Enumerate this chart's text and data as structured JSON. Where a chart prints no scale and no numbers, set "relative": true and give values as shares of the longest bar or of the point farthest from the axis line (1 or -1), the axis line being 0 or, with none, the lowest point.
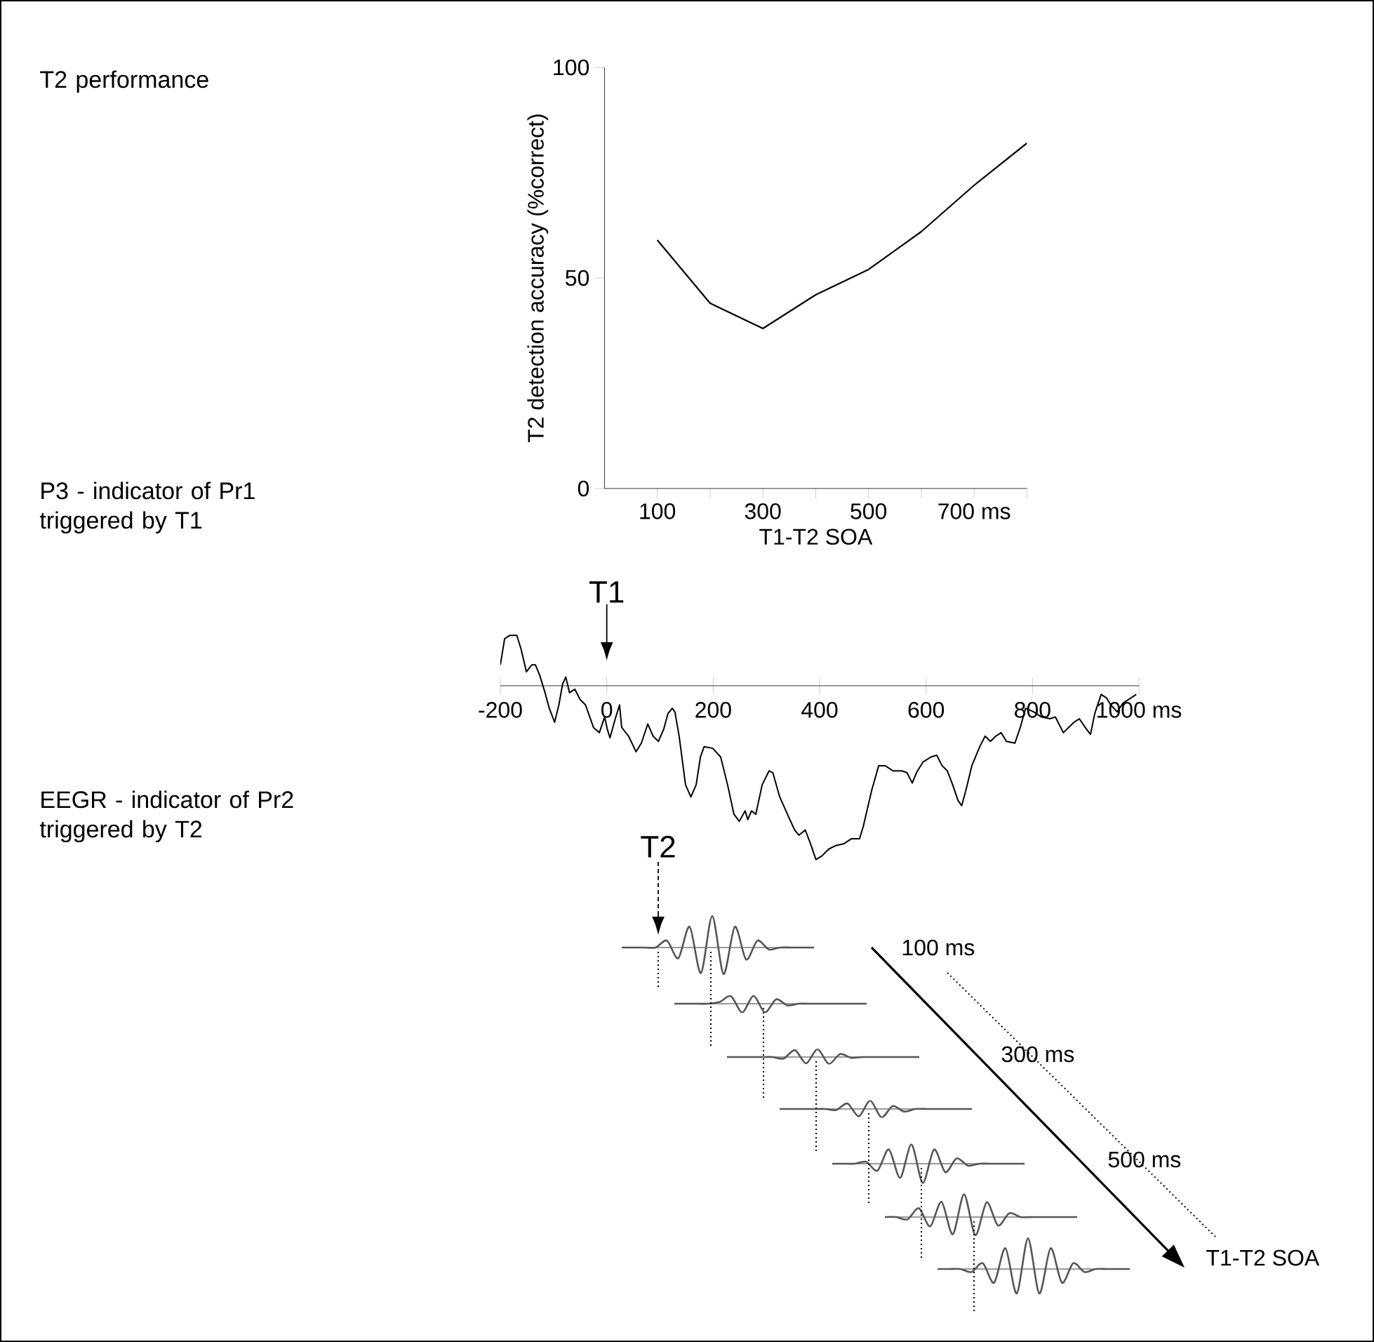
{
  "chart_data": [
    {
      "type": "line",
      "annotations": [
        "T2 performance"
      ],
      "xlabel": "T1-T2 SOA",
      "ylabel": "T2 detection accuracy (%correct)",
      "x": [
        100,
        200,
        300,
        400,
        500,
        600,
        700,
        800
      ],
      "values": [
        59,
        44,
        38,
        46,
        52,
        61,
        72,
        82
      ],
      "color": "#000000",
      "xlim": [
        0,
        800
      ],
      "xticks": [
        100,
        {
          "value": 200,
          "label": null
        },
        300,
        {
          "value": 400,
          "label": null
        },
        500,
        {
          "value": 600,
          "label": null
        },
        {
          "value": 700,
          "label": "700 ms"
        },
        {
          "value": 800,
          "label": null
        }
      ],
      "ylim": [
        0,
        100
      ],
      "yticks": [
        0,
        50,
        100
      ]
    },
    {
      "type": "line",
      "relative": true,
      "color": "#000000",
      "x": [
        -200,
        -192,
        -182,
        -169,
        -161,
        -151,
        -141,
        -134,
        -126,
        -116,
        -108,
        -98,
        -90,
        -83,
        -77,
        -70,
        -60,
        -50,
        -40,
        -25,
        -14,
        -4,
        1,
        6,
        16,
        24,
        28,
        41,
        55,
        65,
        77,
        87,
        97,
        107,
        115,
        123,
        128,
        136,
        148,
        158,
        168,
        176,
        183,
        199,
        214,
        227,
        239,
        249,
        260,
        265,
        272,
        280,
        292,
        305,
        312,
        325,
        341,
        353,
        361,
        373,
        383,
        393,
        404,
        417,
        430,
        445,
        460,
        475,
        482,
        498,
        511,
        523,
        538,
        554,
        564,
        574,
        582,
        594,
        609,
        620,
        630,
        640,
        650,
        660,
        667,
        675,
        686,
        701,
        711,
        721,
        731,
        741,
        751,
        767,
        777,
        787,
        802,
        817,
        833,
        843,
        858,
        878,
        888,
        899,
        909,
        917,
        929,
        939,
        947,
        959,
        970,
        985,
        995
      ],
      "values": [
        0.12,
        0.27,
        0.29,
        0.29,
        0.21,
        0.08,
        0.12,
        0.12,
        0.06,
        -0.04,
        -0.13,
        -0.21,
        -0.11,
        0.01,
        0.05,
        -0.04,
        -0.02,
        -0.08,
        -0.11,
        -0.24,
        -0.27,
        -0.18,
        -0.25,
        -0.3,
        -0.19,
        -0.11,
        -0.24,
        -0.29,
        -0.38,
        -0.33,
        -0.22,
        -0.29,
        -0.32,
        -0.25,
        -0.16,
        -0.13,
        -0.15,
        -0.29,
        -0.57,
        -0.64,
        -0.57,
        -0.41,
        -0.35,
        -0.36,
        -0.41,
        -0.57,
        -0.74,
        -0.78,
        -0.72,
        -0.77,
        -0.72,
        -0.74,
        -0.57,
        -0.49,
        -0.5,
        -0.64,
        -0.75,
        -0.83,
        -0.86,
        -0.83,
        -0.91,
        -1,
        -0.98,
        -0.94,
        -0.92,
        -0.91,
        -0.88,
        -0.88,
        -0.81,
        -0.6,
        -0.46,
        -0.46,
        -0.49,
        -0.49,
        -0.5,
        -0.56,
        -0.5,
        -0.44,
        -0.41,
        -0.4,
        -0.46,
        -0.49,
        -0.57,
        -0.66,
        -0.69,
        -0.6,
        -0.46,
        -0.35,
        -0.29,
        -0.32,
        -0.29,
        -0.27,
        -0.32,
        -0.33,
        -0.24,
        -0.13,
        -0.15,
        -0.18,
        -0.19,
        -0.18,
        -0.27,
        -0.21,
        -0.19,
        -0.24,
        -0.28,
        -0.16,
        -0.05,
        -0.07,
        -0.11,
        -0.15,
        -0.1,
        -0.07,
        -0.05
      ],
      "xlim": [
        -200,
        1000
      ],
      "xticks": [
        -200,
        0,
        200,
        400,
        600,
        800,
        {
          "value": 1000,
          "label": "1000 ms"
        }
      ],
      "annotations": [
        "P3 - indicator of Pr1 triggered by T1",
        {
          "text": "T1",
          "x": 0
        }
      ]
    },
    {
      "type": "line",
      "relative": true,
      "color": "#555555",
      "annotations": [
        "EEGR - indicator of Pr2 triggered by T2",
        "T2"
      ],
      "categories": [
        null,
        null,
        null,
        null,
        null,
        null,
        null,
        null,
        null,
        null,
        null,
        null,
        null,
        null,
        null,
        null,
        null,
        null
      ],
      "values": [
        0,
        0,
        0,
        0,
        0.22,
        -0.34,
        0.66,
        -0.81,
        1,
        -0.84,
        0.66,
        -0.38,
        0.22,
        -0.06,
        0,
        0,
        0,
        0
      ]
    },
    {
      "type": "line",
      "relative": true,
      "color": "#555555",
      "categories": [
        null,
        null,
        null,
        null,
        null,
        null,
        null,
        null,
        null,
        null,
        null,
        null,
        null,
        null,
        null,
        null,
        null,
        null
      ],
      "values": [
        0,
        0,
        0,
        0,
        0.2,
        0.85,
        -1,
        0.9,
        -1,
        0.5,
        -0.2,
        0,
        0,
        0,
        0,
        0,
        0,
        0
      ]
    },
    {
      "type": "line",
      "relative": true,
      "color": "#555555",
      "categories": [
        null,
        null,
        null,
        null,
        null,
        null,
        null,
        null,
        null,
        null,
        null,
        null,
        null,
        null,
        null,
        null,
        null,
        null
      ],
      "values": [
        0,
        0,
        0,
        0,
        0,
        -0.2,
        0.88,
        -0.81,
        1,
        -0.88,
        0.38,
        -0.1,
        0,
        0,
        0,
        0,
        0,
        0
      ]
    },
    {
      "type": "line",
      "relative": true,
      "color": "#555555",
      "categories": [
        null,
        null,
        null,
        null,
        null,
        null,
        null,
        null,
        null,
        null,
        null,
        null,
        null,
        null,
        null,
        null,
        null,
        null
      ],
      "values": [
        0,
        0,
        0,
        0,
        0,
        -0.12,
        0.65,
        -0.88,
        1,
        -1,
        0.35,
        -0.3,
        0,
        0,
        0,
        0,
        0,
        0
      ]
    },
    {
      "type": "line",
      "relative": true,
      "color": "#555555",
      "categories": [
        null,
        null,
        null,
        null,
        null,
        null,
        null,
        null,
        null,
        null,
        null,
        null,
        null,
        null,
        null,
        null,
        null,
        null
      ],
      "values": [
        0,
        0,
        0,
        0.1,
        -0.36,
        0.74,
        -0.74,
        1,
        -1,
        0.74,
        -0.44,
        0.28,
        -0.1,
        0,
        0,
        0,
        0,
        0
      ]
    },
    {
      "type": "line",
      "relative": true,
      "color": "#555555",
      "categories": [
        null,
        null,
        null,
        null,
        null,
        null,
        null,
        null,
        null,
        null,
        null,
        null,
        null,
        null,
        null,
        null,
        null,
        null
      ],
      "values": [
        0,
        0,
        -0.1,
        0.39,
        -0.41,
        0.67,
        -0.76,
        1,
        -0.8,
        0.65,
        -0.37,
        0.17,
        0,
        0,
        0,
        0,
        0,
        0
      ]
    },
    {
      "type": "line",
      "relative": true,
      "color": "#555555",
      "categories": [
        null,
        null,
        null,
        null,
        null,
        null,
        null,
        null,
        null,
        null,
        null,
        null,
        null,
        null,
        null,
        null,
        null,
        null
      ],
      "values": [
        0,
        0,
        0,
        -0.1,
        0.19,
        -0.45,
        0.68,
        -0.8,
        1,
        -0.8,
        0.68,
        -0.45,
        0.19,
        -0.1,
        0,
        0,
        0,
        0
      ]
    },
    {
      "type": "other",
      "annotations": [
        "100 ms",
        "300 ms",
        "500 ms",
        "T1-T2 SOA"
      ]
    }
  ]
}
